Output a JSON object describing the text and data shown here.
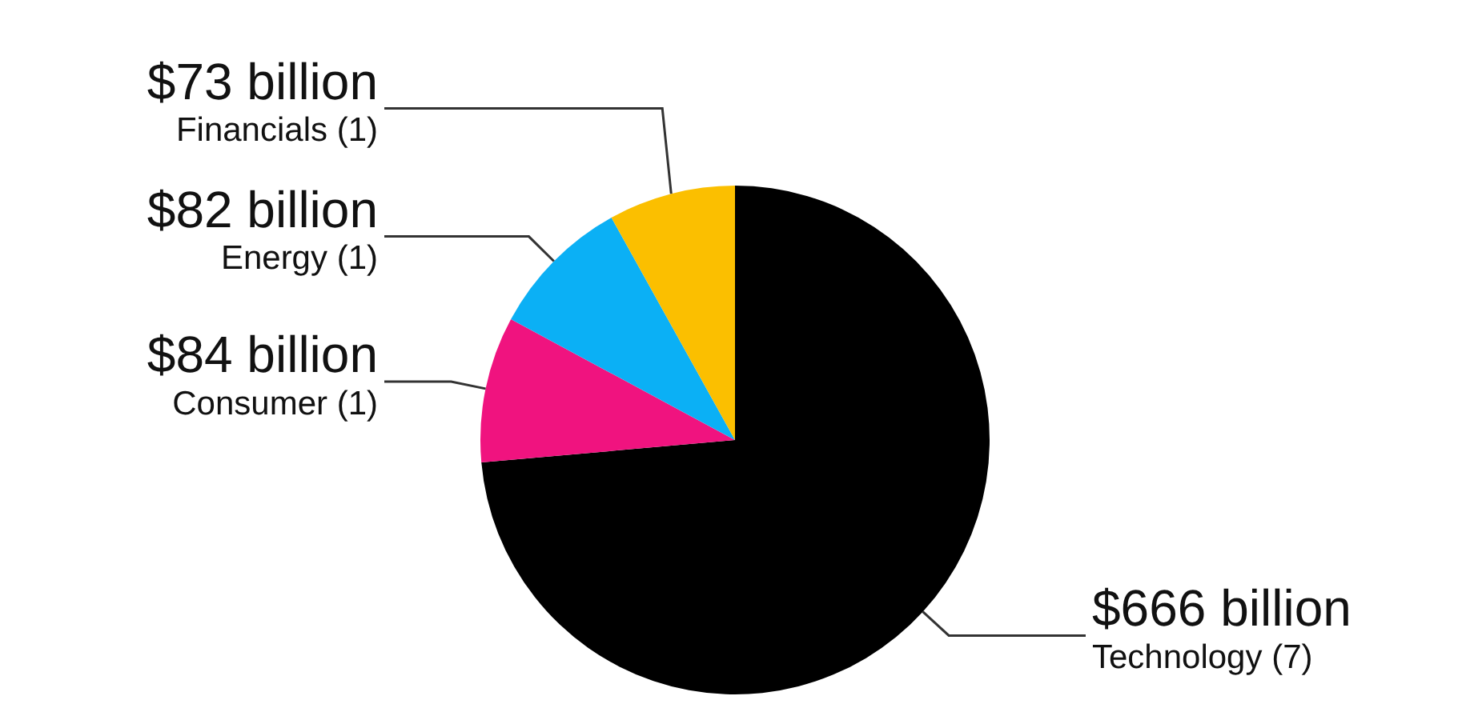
{
  "chart_data": {
    "type": "pie",
    "categories": [
      "Technology (7)",
      "Consumer (1)",
      "Energy (1)",
      "Financials (1)"
    ],
    "values": [
      666,
      84,
      82,
      73
    ],
    "value_labels": [
      "$666 billion",
      "$84 billion",
      "$82 billion",
      "$73 billion"
    ],
    "colors": [
      "#000000",
      "#f0137f",
      "#0bb0f5",
      "#fbbf00"
    ],
    "legend": false
  }
}
